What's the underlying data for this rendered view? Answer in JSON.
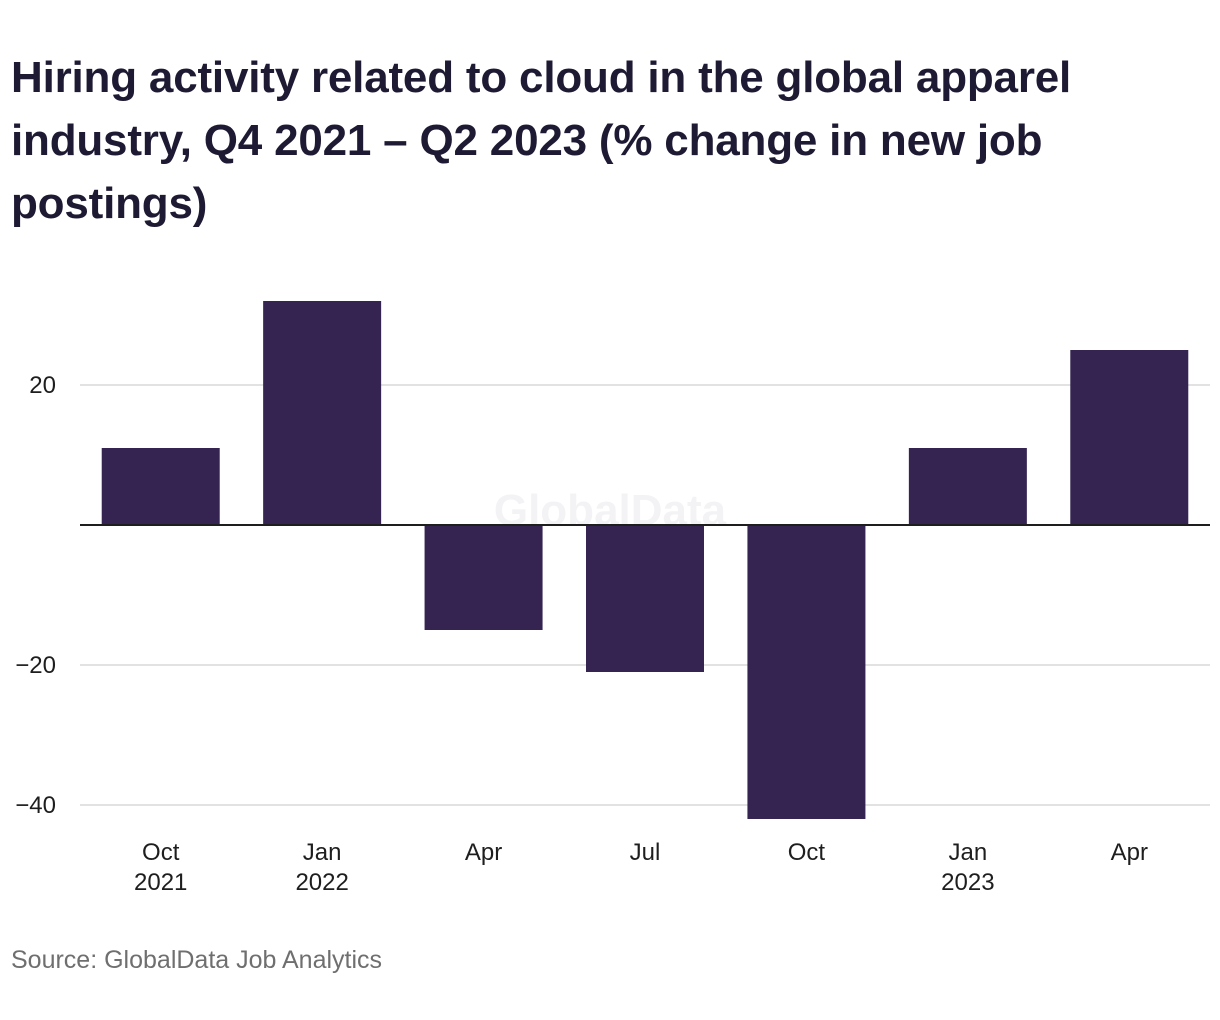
{
  "title": "Hiring activity related to cloud in the global apparel industry, Q4 2021 – Q2 2023 (% change in new job postings)",
  "source": "Source: GlobalData Job Analytics",
  "watermark": "GlobalData",
  "colors": {
    "bar": "#352452",
    "grid": "#d9d9d9",
    "zero_line": "#1e1e1e",
    "title": "#1e1a33",
    "source": "#6f6f6f"
  },
  "chart_data": {
    "type": "bar",
    "categories": [
      {
        "label": "Oct",
        "sublabel": "2021"
      },
      {
        "label": "Jan",
        "sublabel": "2022"
      },
      {
        "label": "Apr",
        "sublabel": ""
      },
      {
        "label": "Jul",
        "sublabel": ""
      },
      {
        "label": "Oct",
        "sublabel": ""
      },
      {
        "label": "Jan",
        "sublabel": "2023"
      },
      {
        "label": "Apr",
        "sublabel": ""
      }
    ],
    "values": [
      11,
      32,
      -15,
      -21,
      -42,
      11,
      25
    ],
    "y_ticks": [
      -40,
      -20,
      20
    ],
    "y_tick_labels": [
      "−40",
      "−20",
      "20"
    ],
    "ylim": [
      -42,
      34
    ],
    "grid": true,
    "legend": "none"
  }
}
